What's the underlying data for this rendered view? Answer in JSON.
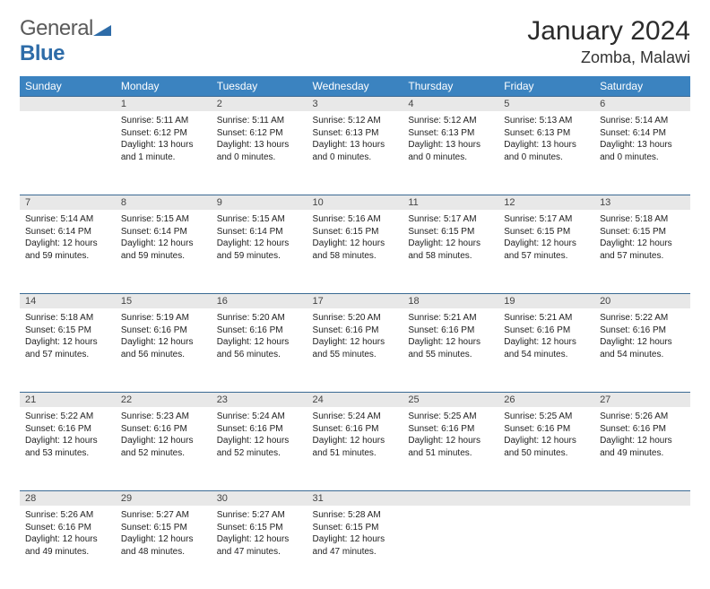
{
  "logo": {
    "part1": "General",
    "part2": "Blue",
    "icon_color": "#2e6ca8",
    "text_color": "#5a5a5a",
    "blue_color": "#2e6ca8"
  },
  "title": {
    "month": "January 2024",
    "location": "Zomba, Malawi",
    "month_fontsize": 30,
    "loc_fontsize": 18
  },
  "style": {
    "header_bg": "#3b83c0",
    "header_fg": "#ffffff",
    "daynum_bg": "#e8e8e8",
    "daynum_fg": "#444444",
    "border_color": "#3b6a94",
    "body_fontsize": 10,
    "header_fontsize": 12
  },
  "weekdays": [
    "Sunday",
    "Monday",
    "Tuesday",
    "Wednesday",
    "Thursday",
    "Friday",
    "Saturday"
  ],
  "start_offset": 1,
  "days": [
    {
      "n": 1,
      "sr": "5:11 AM",
      "ss": "6:12 PM",
      "dl": "13 hours and 1 minute."
    },
    {
      "n": 2,
      "sr": "5:11 AM",
      "ss": "6:12 PM",
      "dl": "13 hours and 0 minutes."
    },
    {
      "n": 3,
      "sr": "5:12 AM",
      "ss": "6:13 PM",
      "dl": "13 hours and 0 minutes."
    },
    {
      "n": 4,
      "sr": "5:12 AM",
      "ss": "6:13 PM",
      "dl": "13 hours and 0 minutes."
    },
    {
      "n": 5,
      "sr": "5:13 AM",
      "ss": "6:13 PM",
      "dl": "13 hours and 0 minutes."
    },
    {
      "n": 6,
      "sr": "5:14 AM",
      "ss": "6:14 PM",
      "dl": "13 hours and 0 minutes."
    },
    {
      "n": 7,
      "sr": "5:14 AM",
      "ss": "6:14 PM",
      "dl": "12 hours and 59 minutes."
    },
    {
      "n": 8,
      "sr": "5:15 AM",
      "ss": "6:14 PM",
      "dl": "12 hours and 59 minutes."
    },
    {
      "n": 9,
      "sr": "5:15 AM",
      "ss": "6:14 PM",
      "dl": "12 hours and 59 minutes."
    },
    {
      "n": 10,
      "sr": "5:16 AM",
      "ss": "6:15 PM",
      "dl": "12 hours and 58 minutes."
    },
    {
      "n": 11,
      "sr": "5:17 AM",
      "ss": "6:15 PM",
      "dl": "12 hours and 58 minutes."
    },
    {
      "n": 12,
      "sr": "5:17 AM",
      "ss": "6:15 PM",
      "dl": "12 hours and 57 minutes."
    },
    {
      "n": 13,
      "sr": "5:18 AM",
      "ss": "6:15 PM",
      "dl": "12 hours and 57 minutes."
    },
    {
      "n": 14,
      "sr": "5:18 AM",
      "ss": "6:15 PM",
      "dl": "12 hours and 57 minutes."
    },
    {
      "n": 15,
      "sr": "5:19 AM",
      "ss": "6:16 PM",
      "dl": "12 hours and 56 minutes."
    },
    {
      "n": 16,
      "sr": "5:20 AM",
      "ss": "6:16 PM",
      "dl": "12 hours and 56 minutes."
    },
    {
      "n": 17,
      "sr": "5:20 AM",
      "ss": "6:16 PM",
      "dl": "12 hours and 55 minutes."
    },
    {
      "n": 18,
      "sr": "5:21 AM",
      "ss": "6:16 PM",
      "dl": "12 hours and 55 minutes."
    },
    {
      "n": 19,
      "sr": "5:21 AM",
      "ss": "6:16 PM",
      "dl": "12 hours and 54 minutes."
    },
    {
      "n": 20,
      "sr": "5:22 AM",
      "ss": "6:16 PM",
      "dl": "12 hours and 54 minutes."
    },
    {
      "n": 21,
      "sr": "5:22 AM",
      "ss": "6:16 PM",
      "dl": "12 hours and 53 minutes."
    },
    {
      "n": 22,
      "sr": "5:23 AM",
      "ss": "6:16 PM",
      "dl": "12 hours and 52 minutes."
    },
    {
      "n": 23,
      "sr": "5:24 AM",
      "ss": "6:16 PM",
      "dl": "12 hours and 52 minutes."
    },
    {
      "n": 24,
      "sr": "5:24 AM",
      "ss": "6:16 PM",
      "dl": "12 hours and 51 minutes."
    },
    {
      "n": 25,
      "sr": "5:25 AM",
      "ss": "6:16 PM",
      "dl": "12 hours and 51 minutes."
    },
    {
      "n": 26,
      "sr": "5:25 AM",
      "ss": "6:16 PM",
      "dl": "12 hours and 50 minutes."
    },
    {
      "n": 27,
      "sr": "5:26 AM",
      "ss": "6:16 PM",
      "dl": "12 hours and 49 minutes."
    },
    {
      "n": 28,
      "sr": "5:26 AM",
      "ss": "6:16 PM",
      "dl": "12 hours and 49 minutes."
    },
    {
      "n": 29,
      "sr": "5:27 AM",
      "ss": "6:15 PM",
      "dl": "12 hours and 48 minutes."
    },
    {
      "n": 30,
      "sr": "5:27 AM",
      "ss": "6:15 PM",
      "dl": "12 hours and 47 minutes."
    },
    {
      "n": 31,
      "sr": "5:28 AM",
      "ss": "6:15 PM",
      "dl": "12 hours and 47 minutes."
    }
  ],
  "labels": {
    "sunrise": "Sunrise:",
    "sunset": "Sunset:",
    "daylight": "Daylight:"
  }
}
